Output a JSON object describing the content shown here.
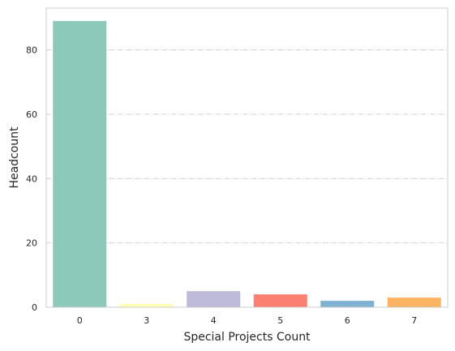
{
  "chart_data": {
    "type": "bar",
    "title": "",
    "xlabel": "Special Projects Count",
    "ylabel": "Headcount",
    "categories": [
      "0",
      "3",
      "4",
      "5",
      "6",
      "7"
    ],
    "values": [
      89,
      1,
      5,
      4,
      2,
      3
    ],
    "colors": [
      "#8dc9ba",
      "#ffffb3",
      "#bebada",
      "#fb8072",
      "#80b1d3",
      "#fdb462"
    ],
    "ylim": [
      0,
      93
    ],
    "yticks": [
      0,
      20,
      40,
      60,
      80
    ],
    "grid": "y-dashdot",
    "legend": "none"
  }
}
